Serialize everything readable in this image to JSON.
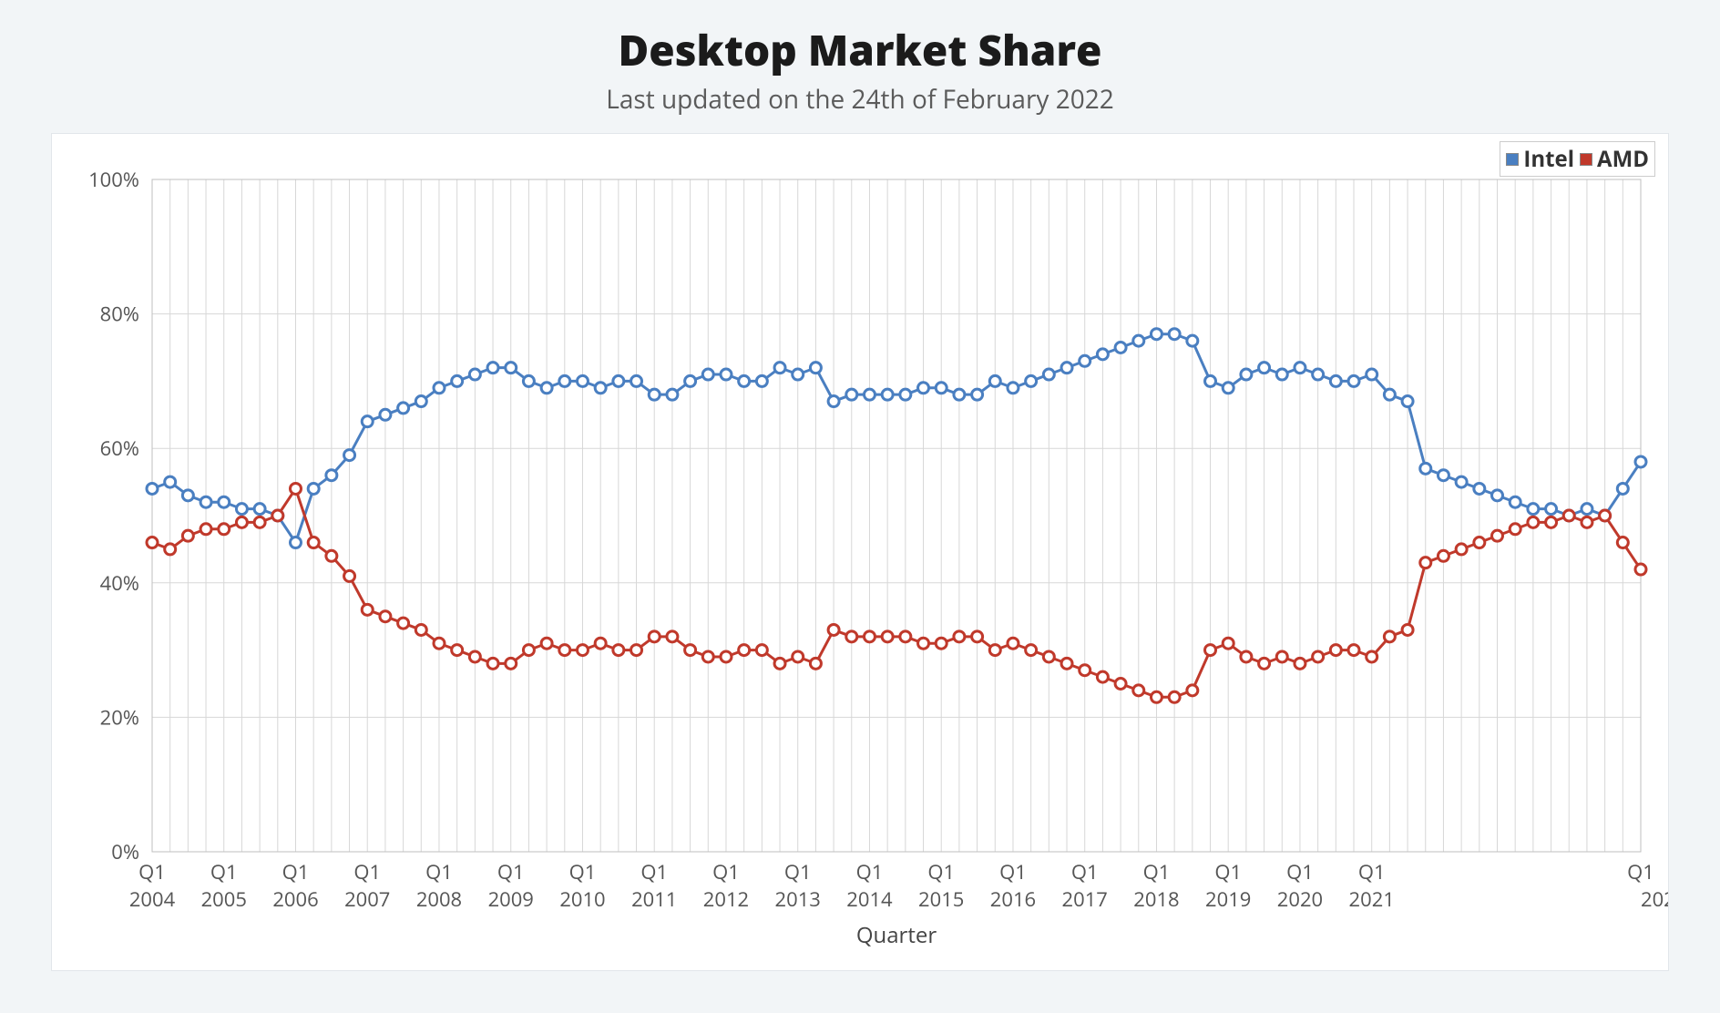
{
  "title": "Desktop Market Share",
  "title_fontsize": 46,
  "subtitle": "Last updated on the 24th of February 2022",
  "subtitle_fontsize": 28,
  "page_bg": "#f2f5f7",
  "card_bg": "#ffffff",
  "card_border": "#e2e6ea",
  "chart": {
    "type": "line",
    "xlabel": "Quarter",
    "ylim": [
      0,
      100
    ],
    "ytick_step": 20,
    "ytick_suffix": "%",
    "grid_color": "#d7d7d7",
    "plot_border_color": "#bfbfbf",
    "axis_text_color": "#555555",
    "axis_fontsize": 22,
    "xlabel_fontsize": 24,
    "line_width": 3,
    "marker": "circle",
    "marker_radius": 6,
    "marker_fill": "#ffffff",
    "marker_stroke_width": 3,
    "legend": {
      "position": "top-right",
      "border_color": "#cccccc",
      "font_weight": 700,
      "fontsize": 24,
      "items": [
        {
          "label": "Intel",
          "color": "#4a7fc1"
        },
        {
          "label": "AMD",
          "color": "#c0392b"
        }
      ]
    },
    "xtick_years": [
      2004,
      2005,
      2006,
      2007,
      2008,
      2009,
      2010,
      2011,
      2012,
      2013,
      2014,
      2015,
      2016,
      2017,
      2018,
      2019,
      2020,
      2021
    ],
    "xtick_q1_label": "Q1",
    "xtick_tail_label_top": "Q1",
    "xtick_tail_label_bottom": "202",
    "series": [
      {
        "name": "Intel",
        "color": "#4a7fc1",
        "values": [
          54,
          55,
          53,
          52,
          52,
          51,
          51,
          50,
          46,
          54,
          56,
          59,
          64,
          65,
          66,
          67,
          69,
          70,
          71,
          72,
          72,
          70,
          69,
          70,
          70,
          69,
          70,
          70,
          68,
          68,
          70,
          71,
          71,
          70,
          70,
          72,
          71,
          72,
          67,
          68,
          68,
          68,
          68,
          69,
          69,
          68,
          68,
          70,
          69,
          70,
          71,
          72,
          73,
          74,
          75,
          76,
          77,
          77,
          76,
          70,
          69,
          71,
          72,
          71,
          72,
          71,
          70,
          70,
          71,
          68,
          67,
          57,
          56,
          55,
          54,
          53,
          52,
          51,
          51,
          50,
          51,
          50,
          54,
          58
        ]
      },
      {
        "name": "AMD",
        "color": "#c0392b",
        "values": [
          46,
          45,
          47,
          48,
          48,
          49,
          49,
          50,
          54,
          46,
          44,
          41,
          36,
          35,
          34,
          33,
          31,
          30,
          29,
          28,
          28,
          30,
          31,
          30,
          30,
          31,
          30,
          30,
          32,
          32,
          30,
          29,
          29,
          30,
          30,
          28,
          29,
          28,
          33,
          32,
          32,
          32,
          32,
          31,
          31,
          32,
          32,
          30,
          31,
          30,
          29,
          28,
          27,
          26,
          25,
          24,
          23,
          23,
          24,
          30,
          31,
          29,
          28,
          29,
          28,
          29,
          30,
          30,
          29,
          32,
          33,
          43,
          44,
          45,
          46,
          47,
          48,
          49,
          49,
          50,
          49,
          50,
          46,
          42
        ]
      }
    ],
    "n_points": 84,
    "start_year": 2004,
    "start_quarter": 1
  }
}
